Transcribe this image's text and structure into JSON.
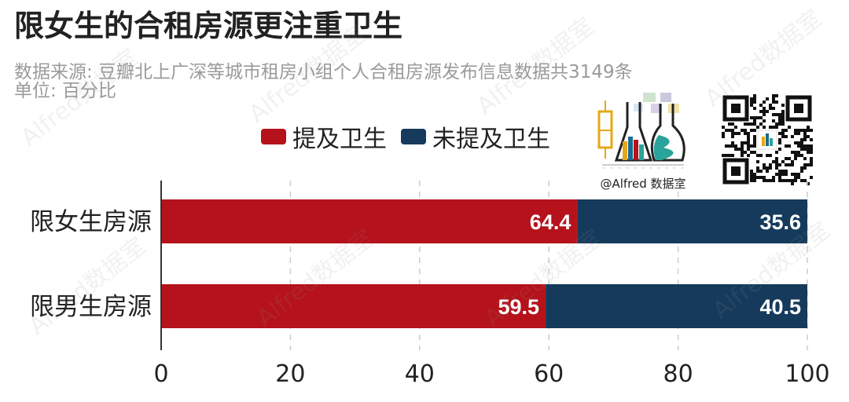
{
  "title": "限女生的合租房源更注重卫生",
  "subtitle_lines": [
    "数据来源: 豆瓣北上广深等城市租房小组个人合租房源发布信息数据共3149条",
    "单位: 百分比"
  ],
  "logo_caption": "@Alfred 数据室",
  "watermark_text": "Alfred数据室",
  "colors": {
    "series_1": "#b5121b",
    "series_2": "#153a5b",
    "grid": "#cccccc",
    "axis": "#333333"
  },
  "chart_data": {
    "type": "bar",
    "orientation": "horizontal",
    "stacked": true,
    "categories": [
      "限女生房源",
      "限男生房源"
    ],
    "series": [
      {
        "name": "提及卫生",
        "values": [
          64.4,
          59.5
        ]
      },
      {
        "name": "未提及卫生",
        "values": [
          35.6,
          40.5
        ]
      }
    ],
    "xlim": [
      0,
      100
    ],
    "xticks": [
      "0",
      "20",
      "40",
      "60",
      "80",
      "100"
    ],
    "grid": true,
    "legend_position": "top-left"
  }
}
